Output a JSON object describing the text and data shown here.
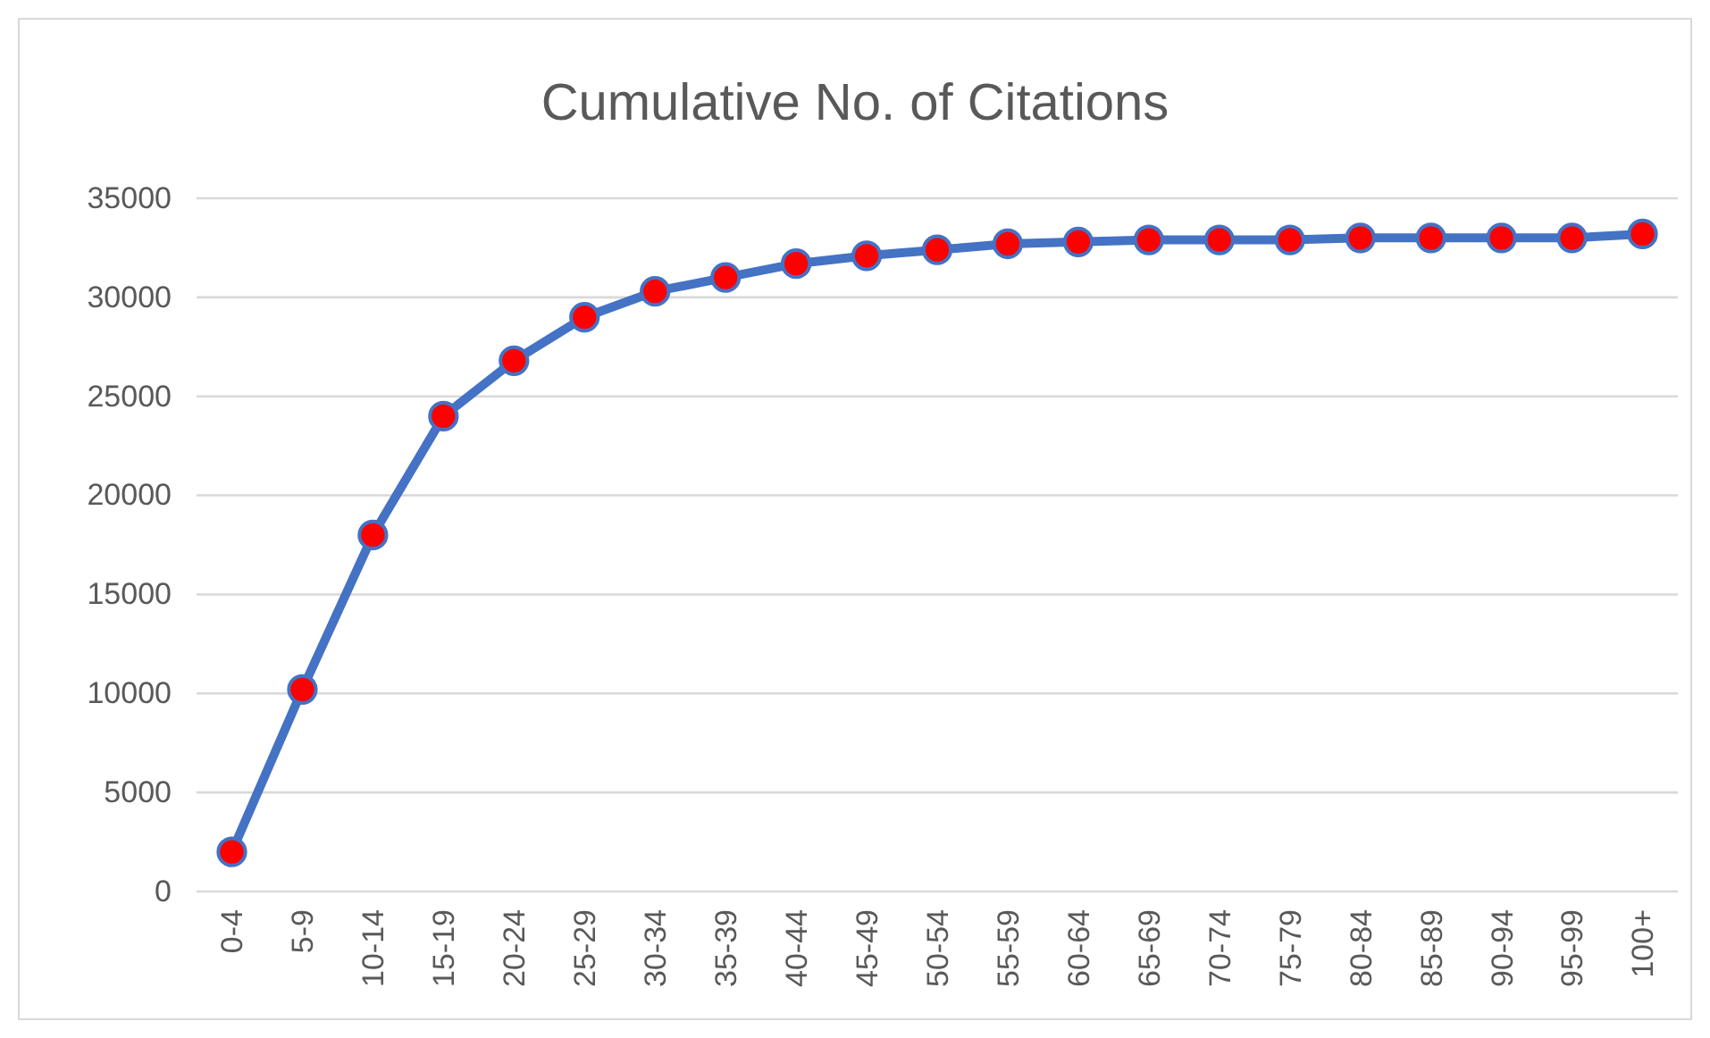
{
  "chart_data": {
    "type": "line",
    "title": "Cumulative No. of Citations",
    "categories": [
      "0-4",
      "5-9",
      "10-14",
      "15-19",
      "20-24",
      "25-29",
      "30-34",
      "35-39",
      "40-44",
      "45-49",
      "50-54",
      "55-59",
      "60-64",
      "65-69",
      "70-74",
      "75-79",
      "80-84",
      "85-89",
      "90-94",
      "95-99",
      "100+"
    ],
    "series": [
      {
        "color": "#4472c4",
        "values": [
          2000,
          10200,
          18000,
          24000,
          26800,
          29000,
          30300,
          31000,
          31700,
          32100,
          32400,
          32700,
          32800,
          32900,
          32900,
          32900,
          33000,
          33000,
          33000,
          33000,
          33200
        ]
      }
    ],
    "ylim": [
      0,
      35000
    ],
    "yticks": [
      0,
      5000,
      10000,
      15000,
      20000,
      25000,
      30000,
      35000
    ],
    "grid": "y",
    "marker": "circle",
    "line_style": "solid"
  }
}
